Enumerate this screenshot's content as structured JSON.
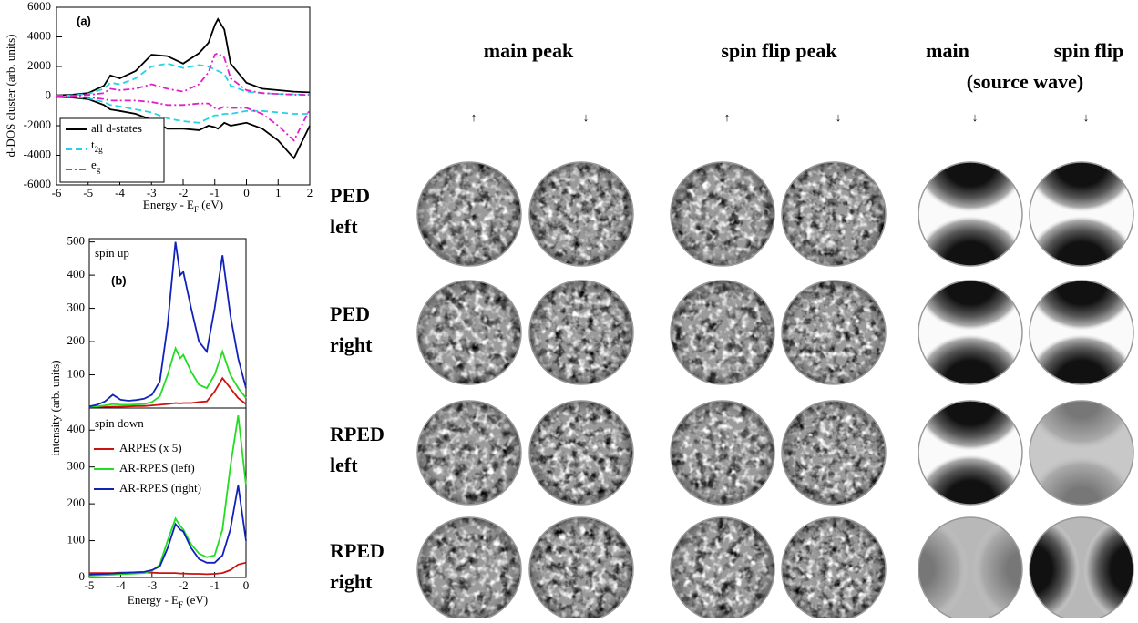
{
  "chart_data": [
    {
      "type": "line",
      "panel_label": "(a)",
      "ylabel": "d-DOS cluster  (arb. units)",
      "xlabel": [
        "Energy - E",
        "F",
        " (eV)"
      ],
      "xlim": [
        -6,
        2
      ],
      "xticks": [
        -6,
        -5,
        -4,
        -3,
        -2,
        -1,
        0,
        1,
        2
      ],
      "ylim": [
        -6000,
        6000
      ],
      "yticks": [
        -6000,
        -4000,
        -2000,
        0,
        2000,
        4000,
        6000
      ],
      "x": [
        -6,
        -5.5,
        -5,
        -4.5,
        -4.3,
        -4,
        -3.5,
        -3,
        -2.5,
        -2,
        -1.5,
        -1.2,
        -1,
        -0.9,
        -0.7,
        -0.5,
        0,
        0.5,
        1,
        1.5,
        2
      ],
      "series": [
        {
          "name": [
            "all d-states"
          ],
          "color": "#000000",
          "linestyle": "solid",
          "values": [
            50,
            100,
            200,
            700,
            1400,
            1200,
            1700,
            2800,
            2700,
            2200,
            2900,
            3600,
            4800,
            5200,
            4500,
            2200,
            900,
            500,
            400,
            300,
            250
          ],
          "values_down": [
            -50,
            -100,
            -200,
            -600,
            -900,
            -1000,
            -1200,
            -1600,
            -2200,
            -2200,
            -2300,
            -2000,
            -2100,
            -2200,
            -1800,
            -2000,
            -1800,
            -2200,
            -3000,
            -4200,
            -2000
          ]
        },
        {
          "name": [
            "t",
            "2g"
          ],
          "color": "#22d3e6",
          "linestyle": "dashed",
          "values": [
            30,
            60,
            150,
            500,
            900,
            800,
            1200,
            2000,
            2200,
            1900,
            2100,
            2000,
            1800,
            1700,
            1500,
            700,
            300,
            200,
            150,
            120,
            100
          ],
          "values_down": [
            -30,
            -60,
            -150,
            -400,
            -600,
            -700,
            -900,
            -1100,
            -1500,
            -1700,
            -1800,
            -1500,
            -1300,
            -1300,
            -1200,
            -1200,
            -1000,
            -1000,
            -1100,
            -1200,
            -1200
          ]
        },
        {
          "name": [
            "e",
            "g"
          ],
          "color": "#e020c8",
          "linestyle": "dashdot",
          "values": [
            20,
            40,
            80,
            200,
            500,
            400,
            500,
            800,
            500,
            300,
            800,
            1600,
            2800,
            2900,
            2600,
            1200,
            400,
            200,
            150,
            100,
            80
          ],
          "values_down": [
            -20,
            -40,
            -80,
            -200,
            -300,
            -300,
            -300,
            -400,
            -600,
            -600,
            -500,
            -500,
            -800,
            -900,
            -700,
            -800,
            -800,
            -1200,
            -2000,
            -3000,
            -900
          ]
        }
      ]
    },
    {
      "type": "line",
      "panel_label": "(b)",
      "annotation": "spin up",
      "ylabel": "intensity (arb. units)",
      "xlim": [
        -5,
        0
      ],
      "ylim": [
        0,
        510
      ],
      "yticks": [
        100,
        200,
        300,
        400,
        500
      ],
      "x": [
        -5,
        -4.75,
        -4.5,
        -4.25,
        -4,
        -3.75,
        -3.5,
        -3.25,
        -3,
        -2.75,
        -2.5,
        -2.25,
        -2.1,
        -2,
        -1.75,
        -1.5,
        -1.25,
        -1,
        -0.75,
        -0.5,
        -0.25,
        0
      ],
      "series": [
        {
          "color": "#cc1111",
          "linestyle": "solid",
          "values": [
            2,
            2,
            3,
            4,
            4,
            5,
            6,
            6,
            8,
            10,
            12,
            15,
            14,
            15,
            15,
            18,
            20,
            50,
            90,
            60,
            30,
            12
          ]
        },
        {
          "color": "#22dd22",
          "linestyle": "solid",
          "values": [
            3,
            5,
            8,
            12,
            10,
            10,
            11,
            12,
            18,
            35,
            100,
            180,
            150,
            160,
            110,
            70,
            60,
            100,
            170,
            100,
            60,
            30
          ]
        },
        {
          "color": "#1122bb",
          "linestyle": "solid",
          "values": [
            5,
            10,
            20,
            40,
            25,
            22,
            24,
            28,
            40,
            80,
            250,
            500,
            400,
            410,
            300,
            200,
            170,
            300,
            460,
            280,
            150,
            60
          ]
        }
      ]
    },
    {
      "type": "line",
      "annotation": "spin down",
      "legend": "upper left",
      "xlabel": [
        "Energy - E",
        "F",
        " (eV)"
      ],
      "xlim": [
        -5,
        0
      ],
      "xticks": [
        -5,
        -4,
        -3,
        -2,
        -1,
        0
      ],
      "ylim": [
        0,
        460
      ],
      "yticks": [
        0,
        100,
        200,
        300,
        400
      ],
      "x": [
        -5,
        -4.75,
        -4.5,
        -4.25,
        -4,
        -3.75,
        -3.5,
        -3.25,
        -3,
        -2.75,
        -2.5,
        -2.25,
        -2.1,
        -2,
        -1.75,
        -1.5,
        -1.25,
        -1,
        -0.75,
        -0.5,
        -0.25,
        0
      ],
      "series": [
        {
          "name": [
            "ARPES (x 5)"
          ],
          "color": "#cc1111",
          "linestyle": "solid",
          "values": [
            12,
            12,
            12,
            12,
            13,
            13,
            14,
            14,
            13,
            12,
            12,
            12,
            11,
            11,
            10,
            10,
            9,
            10,
            12,
            20,
            35,
            40
          ]
        },
        {
          "name": [
            "AR-RPES (left)"
          ],
          "color": "#22dd22",
          "linestyle": "solid",
          "values": [
            5,
            6,
            7,
            8,
            9,
            10,
            11,
            12,
            18,
            35,
            100,
            160,
            140,
            130,
            90,
            65,
            55,
            60,
            130,
            300,
            440,
            250
          ]
        },
        {
          "name": [
            "AR-RPES (right)"
          ],
          "color": "#1122bb",
          "linestyle": "solid",
          "values": [
            8,
            9,
            10,
            11,
            12,
            13,
            14,
            15,
            20,
            30,
            80,
            145,
            130,
            125,
            80,
            50,
            40,
            40,
            60,
            130,
            250,
            100
          ]
        }
      ]
    }
  ],
  "pattern_grid": {
    "group_headers": [
      [
        "main peak"
      ],
      [
        "spin flip peak"
      ],
      [
        "main",
        "spin flip"
      ],
      [
        "(source wave)"
      ]
    ],
    "spin_arrows": [
      "↑",
      "↓",
      "↑",
      "↓",
      "↓",
      "↓"
    ],
    "row_labels": [
      [
        "PED",
        "left"
      ],
      [
        "PED",
        "right"
      ],
      [
        "RPED",
        "left"
      ],
      [
        "RPED",
        "right"
      ]
    ]
  }
}
